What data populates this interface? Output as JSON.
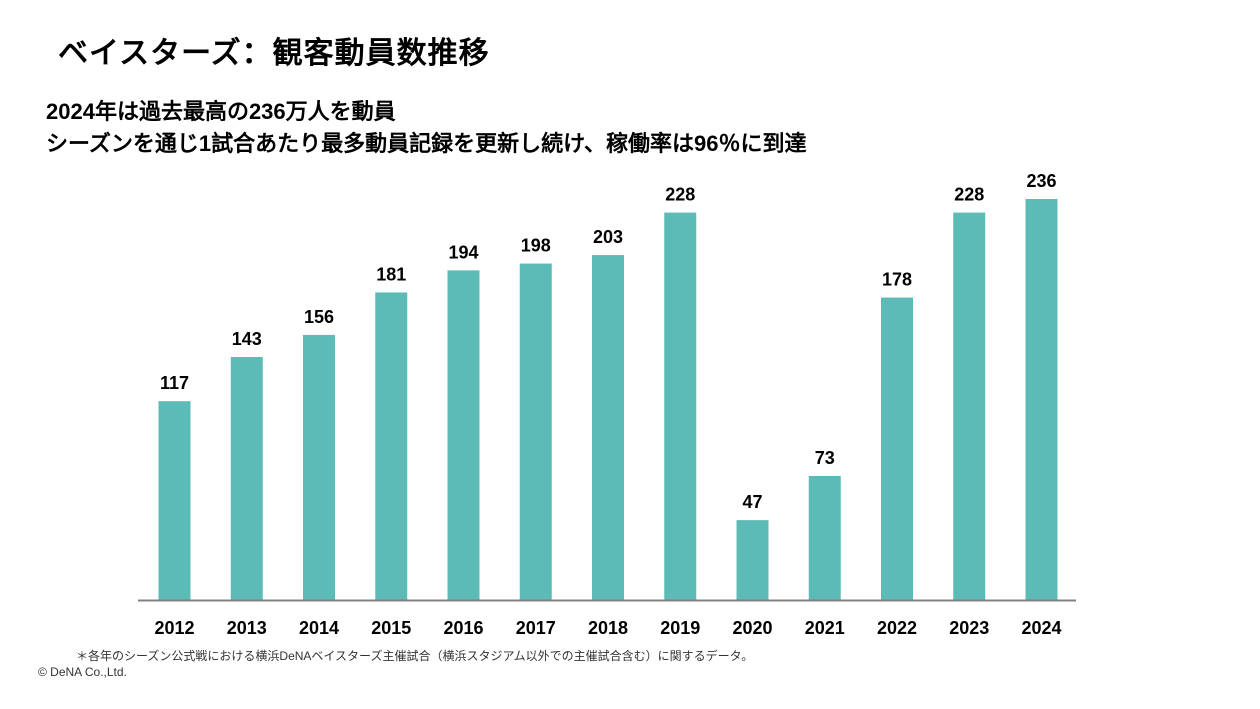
{
  "header": {
    "title": "ベイスターズ：観客動員数推移",
    "subtitle_line1": "2024年は過去最高の236万人を動員",
    "subtitle_line2": "シーズンを通じ1試合あたり最多動員記録を更新し続け、稼働率は96％に到達"
  },
  "chart_data": {
    "type": "bar",
    "categories": [
      "2012",
      "2013",
      "2014",
      "2015",
      "2016",
      "2017",
      "2018",
      "2019",
      "2020",
      "2021",
      "2022",
      "2023",
      "2024"
    ],
    "values": [
      117,
      143,
      156,
      181,
      194,
      198,
      203,
      228,
      47,
      73,
      178,
      228,
      236
    ],
    "data_labels": [
      "117",
      "143",
      "156",
      "181",
      "194",
      "198",
      "203",
      "228",
      "47",
      "73",
      "178",
      "228",
      "236"
    ],
    "ylim": [
      0,
      236
    ],
    "bar_color": "#5cbbb6",
    "axis_color": "#808080",
    "grid": false,
    "legend": "none"
  },
  "footer": {
    "footnote": "＊各年のシーズン公式戦における横浜DeNAベイスターズ主催試合（横浜スタジアム以外での主催試合含む）に関するデータ。",
    "copyright": "© DeNA Co.,Ltd."
  }
}
